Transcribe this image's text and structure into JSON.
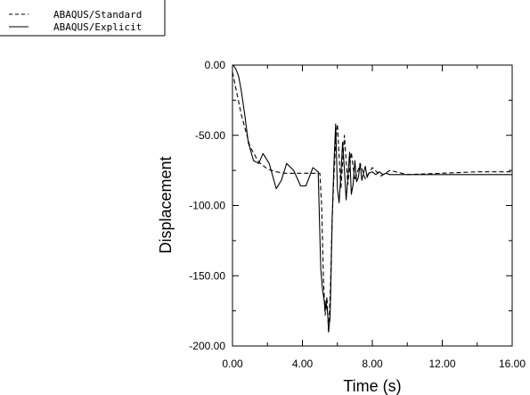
{
  "chart_data": {
    "type": "line",
    "title": "",
    "xlabel": "Time (s)",
    "ylabel": "Displacement",
    "xlim": [
      0,
      16
    ],
    "ylim": [
      -200,
      0
    ],
    "x_ticks": [
      {
        "value": 0,
        "label": "0.00"
      },
      {
        "value": 4,
        "label": "4.00"
      },
      {
        "value": 8,
        "label": "8.00"
      },
      {
        "value": 12,
        "label": "12.00"
      },
      {
        "value": 16,
        "label": "16.00"
      }
    ],
    "y_ticks": [
      {
        "value": 0,
        "label": "0.00"
      },
      {
        "value": -50,
        "label": "-50.00"
      },
      {
        "value": -100,
        "label": "-100.00"
      },
      {
        "value": -150,
        "label": "-150.00"
      },
      {
        "value": -200,
        "label": "-200.00"
      }
    ],
    "legend_position": "top-left",
    "grid": false,
    "series": [
      {
        "name": "ABAQUS/Standard",
        "style": "dashed",
        "color": "#000000",
        "x": [
          0,
          0.5,
          1.0,
          1.5,
          2.0,
          2.5,
          3.0,
          4.0,
          5.0,
          5.1,
          5.2,
          5.3,
          5.4,
          5.5,
          5.6,
          5.7,
          5.8,
          5.9,
          6.0,
          6.1,
          6.2,
          6.3,
          6.4,
          6.6,
          6.8,
          7.0,
          7.3,
          7.6,
          8.0,
          8.5,
          9.0,
          10.0,
          12.0,
          14.0,
          16.0
        ],
        "y": [
          -5,
          -35,
          -58,
          -69,
          -74,
          -76,
          -77,
          -77,
          -77,
          -100,
          -152,
          -178,
          -165,
          -190,
          -160,
          -110,
          -80,
          -55,
          -42,
          -65,
          -88,
          -70,
          -50,
          -85,
          -62,
          -82,
          -70,
          -81,
          -73,
          -79,
          -75,
          -78,
          -77,
          -76,
          -76
        ]
      },
      {
        "name": "ABAQUS/Explicit",
        "style": "solid",
        "color": "#000000",
        "x": [
          0,
          0.1,
          0.2,
          0.35,
          0.5,
          0.7,
          0.9,
          1.2,
          1.5,
          1.75,
          2.1,
          2.5,
          2.8,
          3.1,
          3.5,
          3.9,
          4.2,
          4.6,
          4.9,
          5.05,
          5.15,
          5.25,
          5.3,
          5.35,
          5.45,
          5.5,
          5.58,
          5.62,
          5.7,
          5.8,
          5.9,
          6.0,
          6.1,
          6.2,
          6.3,
          6.4,
          6.5,
          6.6,
          6.7,
          6.8,
          6.9,
          7.0,
          7.1,
          7.2,
          7.3,
          7.4,
          7.5,
          7.6,
          7.7,
          7.8,
          8.0,
          8.2,
          8.4,
          8.6,
          8.8,
          9.0,
          9.5,
          10.0,
          12.0,
          14.0,
          16.0
        ],
        "y": [
          0,
          -1,
          -3,
          -8,
          -18,
          -35,
          -55,
          -68,
          -70,
          -63,
          -70,
          -88,
          -82,
          -70,
          -75,
          -86,
          -86,
          -73,
          -76,
          -145,
          -160,
          -168,
          -175,
          -168,
          -178,
          -190,
          -180,
          -160,
          -110,
          -72,
          -42,
          -88,
          -98,
          -78,
          -55,
          -74,
          -96,
          -80,
          -62,
          -92,
          -85,
          -68,
          -83,
          -80,
          -70,
          -82,
          -77,
          -72,
          -80,
          -77,
          -76,
          -78,
          -76,
          -78,
          -77,
          -78,
          -78,
          -78,
          -78,
          -78,
          -78
        ]
      }
    ]
  }
}
